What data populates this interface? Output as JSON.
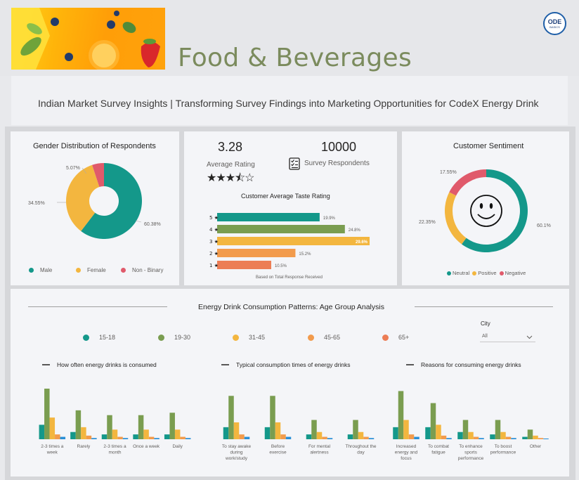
{
  "header": {
    "title": "Food & Beverages",
    "logo_line1": "ODE",
    "logo_line2": "BASICS"
  },
  "subtitle": "Indian Market Survey Insights | Transforming Survey Findings into Marketing Opportunities for CodeX Energy Drink",
  "colors": {
    "teal": "#14988a",
    "green": "#7a9d50",
    "yellow": "#f3b63f",
    "orange": "#f29b4c",
    "coral": "#ec7d55",
    "pink": "#e05a6b",
    "blue": "#2a8fd6"
  },
  "gender": {
    "title": "Gender Distribution of Respondents",
    "chart_data": {
      "type": "pie",
      "categories": [
        "Male",
        "Female",
        "Non - Binary"
      ],
      "values": [
        60.38,
        34.55,
        5.07
      ],
      "labels": [
        "60.38%",
        "34.55%",
        "5.07%"
      ],
      "legend_position": "bottom"
    }
  },
  "rating": {
    "avg_value": "3.28",
    "avg_label": "Average Rating",
    "respondents_value": "10000",
    "respondents_label": "Survey Respondents",
    "stars": 3.5,
    "chart_title": "Customer Average Taste Rating",
    "footnote": "Based on Total Response Received",
    "chart_data": {
      "type": "bar",
      "categories": [
        "5 ★",
        "4 ★",
        "3 ★",
        "2 ★",
        "1 ★"
      ],
      "values": [
        19.9,
        24.8,
        29.6,
        15.2,
        10.5
      ],
      "labels": [
        "19.9%",
        "24.8%",
        "29.6%",
        "15.2%",
        "10.5%"
      ]
    }
  },
  "sentiment": {
    "title": "Customer Sentiment",
    "chart_data": {
      "type": "pie",
      "categories": [
        "Neutral",
        "Positive",
        "Negative"
      ],
      "values": [
        60.1,
        22.35,
        17.55
      ],
      "labels": [
        "60.1%",
        "22.35%",
        "17.55%"
      ],
      "legend_position": "bottom"
    }
  },
  "age": {
    "title": "Energy Drink Consumption Patterns: Age Group Analysis",
    "groups": [
      "15-18",
      "19-30",
      "31-45",
      "45-65",
      "65+"
    ],
    "filter_label": "City",
    "filter_value": "All",
    "chart_data": [
      {
        "type": "bar",
        "title": "How often energy drinks is consumed",
        "categories": [
          "2-3 times a week",
          "Rarely",
          "2-3 times a month",
          "Once a week",
          "Daily"
        ],
        "series": [
          {
            "name": "15-18",
            "values": [
              6,
              3,
              2,
              2,
              2
            ]
          },
          {
            "name": "19-30",
            "values": [
              21,
              12,
              10,
              10,
              11
            ]
          },
          {
            "name": "31-45",
            "values": [
              9,
              5,
              4,
              4,
              4
            ]
          },
          {
            "name": "45-65",
            "values": [
              2,
              1.5,
              1,
              1,
              1
            ]
          },
          {
            "name": "65+",
            "values": [
              1,
              0.5,
              0.5,
              0.5,
              0.5
            ]
          }
        ]
      },
      {
        "type": "bar",
        "title": "Typical consumption times of energy drinks",
        "categories": [
          "To stay awake during work/study",
          "Before exercise",
          "For mental alertness",
          "Throughout the day"
        ],
        "series": [
          {
            "name": "15-18",
            "values": [
              5,
              5,
              2,
              2
            ]
          },
          {
            "name": "19-30",
            "values": [
              18,
              18,
              8,
              8
            ]
          },
          {
            "name": "31-45",
            "values": [
              7,
              7,
              3,
              3
            ]
          },
          {
            "name": "45-65",
            "values": [
              2,
              2,
              1,
              1
            ]
          },
          {
            "name": "65+",
            "values": [
              1,
              1,
              0.5,
              0.5
            ]
          }
        ]
      },
      {
        "type": "bar",
        "title": "Reasons for consuming energy drinks",
        "categories": [
          "Increased energy and focus",
          "To combat fatigue",
          "To enhance sports performance",
          "To boost performance",
          "Other"
        ],
        "series": [
          {
            "name": "15-18",
            "values": [
              5,
              5,
              3,
              2,
              1
            ]
          },
          {
            "name": "19-30",
            "values": [
              20,
              15,
              8,
              8,
              4
            ]
          },
          {
            "name": "31-45",
            "values": [
              8,
              6,
              3,
              3,
              1.5
            ]
          },
          {
            "name": "45-65",
            "values": [
              2,
              1.5,
              1,
              1,
              0.5
            ]
          },
          {
            "name": "65+",
            "values": [
              1,
              0.5,
              0.5,
              0.5,
              0.3
            ]
          }
        ]
      }
    ]
  }
}
